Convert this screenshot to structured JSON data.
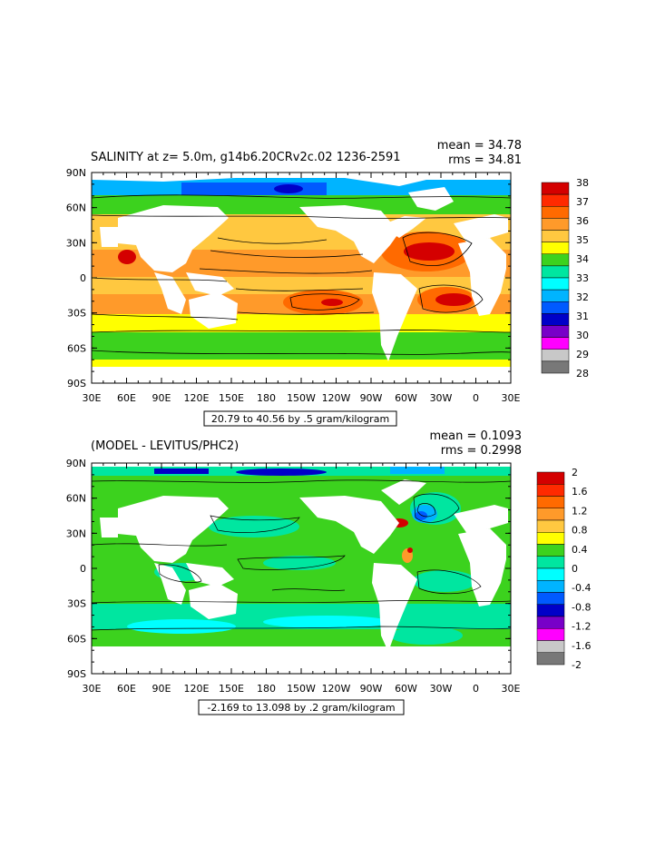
{
  "panels": [
    {
      "title": "SALINITY at z=    5.0m, g14b6.20CRv2c.02  1236-2591",
      "stats": {
        "mean": "mean = 34.78",
        "rms": "rms = 34.81"
      },
      "range_note": "20.79 to 40.56 by .5 gram/kilogram",
      "legend": {
        "labels": [
          "38",
          "37",
          "36",
          "35",
          "34",
          "33",
          "32",
          "31",
          "30",
          "29",
          "28"
        ],
        "colors": [
          "#d40000",
          "#ff2a00",
          "#ff6a00",
          "#ff9a2a",
          "#ffc840",
          "#ffff00",
          "#3cd21e",
          "#00e6a0",
          "#00ffff",
          "#00b4ff",
          "#005aff",
          "#0000c8",
          "#7800c8",
          "#ff00ff",
          "#c8c8c8",
          "#787878"
        ]
      }
    },
    {
      "title": "(MODEL - LEVITUS/PHC2)",
      "stats": {
        "mean": "mean = 0.1093",
        "rms": "rms = 0.2998"
      },
      "range_note": "-2.169 to 13.098 by .2 gram/kilogram",
      "legend": {
        "labels": [
          "2",
          "1.6",
          "1.2",
          "0.8",
          "0.4",
          "0",
          "-0.4",
          "-0.8",
          "-1.2",
          "-1.6",
          "-2"
        ],
        "colors": [
          "#d40000",
          "#ff2a00",
          "#ff6a00",
          "#ff9a2a",
          "#ffc840",
          "#ffff00",
          "#3cd21e",
          "#00e6a0",
          "#00ffff",
          "#00b4ff",
          "#005aff",
          "#0000c8",
          "#7800c8",
          "#ff00ff",
          "#c8c8c8",
          "#787878"
        ]
      }
    }
  ],
  "axes": {
    "lat_labels": [
      "90N",
      "60N",
      "30N",
      "0",
      "30S",
      "60S",
      "90S"
    ],
    "lon_labels": [
      "30E",
      "60E",
      "90E",
      "120E",
      "150E",
      "180",
      "150W",
      "120W",
      "90W",
      "60W",
      "30W",
      "0",
      "30E"
    ]
  }
}
